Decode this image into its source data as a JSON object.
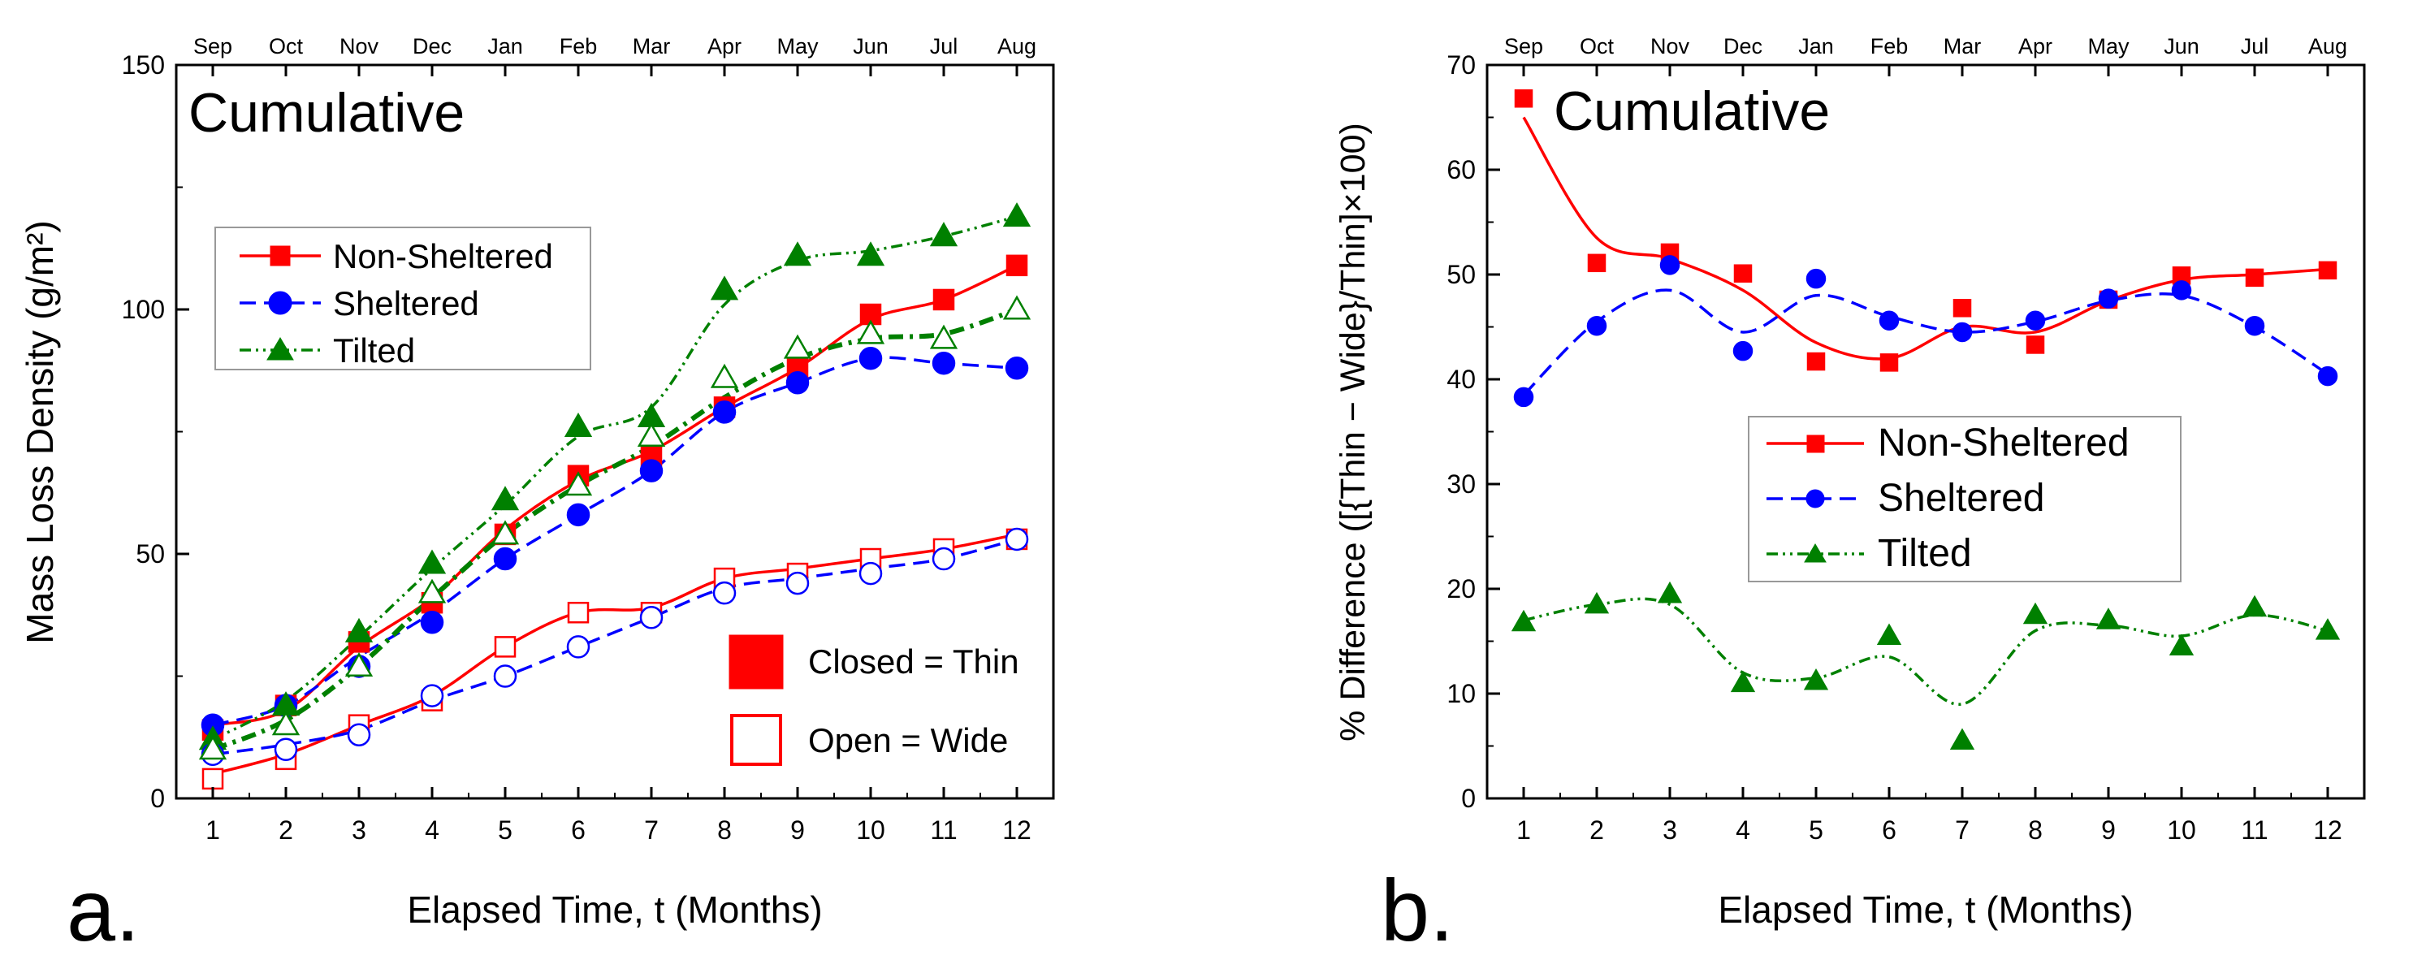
{
  "figure": {
    "panels": [
      "a.",
      "b."
    ]
  },
  "chart_data": [
    {
      "type": "line",
      "panel": "a.",
      "annotation": "Cumulative",
      "xlabel": "Elapsed Time, t (Months)",
      "ylabel": "Mass Loss Density (g/m²)",
      "x": [
        1,
        2,
        3,
        4,
        5,
        6,
        7,
        8,
        9,
        10,
        11,
        12
      ],
      "x_ticks": [
        "1",
        "2",
        "3",
        "4",
        "5",
        "6",
        "7",
        "8",
        "9",
        "10",
        "11",
        "12"
      ],
      "top_ticks": [
        "Sep",
        "Oct",
        "Nov",
        "Dec",
        "Jan",
        "Feb",
        "Mar",
        "Apr",
        "May",
        "Jun",
        "Jul",
        "Aug"
      ],
      "xlim": [
        0.5,
        12.5
      ],
      "ylim": [
        0,
        150
      ],
      "y_ticks": [
        "0",
        "50",
        "100",
        "150"
      ],
      "legend": [
        {
          "label": "Non-Sheltered",
          "color": "#ff0000",
          "marker": "square",
          "dash": "solid"
        },
        {
          "label": "Sheltered",
          "color": "#0000ff",
          "marker": "circle",
          "dash": "dash"
        },
        {
          "label": "Tilted",
          "color": "#008000",
          "marker": "triangle",
          "dash": "dashdotdot"
        }
      ],
      "fill_legend": [
        {
          "label": "Closed = Thin",
          "color": "#ff0000",
          "filled": true
        },
        {
          "label": "Open = Wide",
          "color": "#ff0000",
          "filled": false
        }
      ],
      "series": [
        {
          "name": "Non-Sheltered Thin",
          "color": "#ff0000",
          "marker": "square",
          "filled": true,
          "dash": "solid",
          "curve": [
            15,
            18,
            31,
            41,
            55,
            65,
            71,
            80,
            88,
            98,
            102,
            109
          ],
          "points": [
            14,
            19,
            32,
            40,
            54,
            66,
            70,
            80,
            88,
            99,
            102,
            109
          ]
        },
        {
          "name": "Sheltered Thin",
          "color": "#0000ff",
          "marker": "circle",
          "filled": true,
          "dash": "dash",
          "curve": [
            15,
            19,
            29,
            38,
            49,
            58,
            67,
            79,
            85,
            90,
            89,
            88
          ],
          "points": [
            15,
            19,
            27,
            36,
            49,
            58,
            67,
            79,
            85,
            90,
            89,
            88
          ]
        },
        {
          "name": "Tilted Thin",
          "color": "#008000",
          "marker": "triangle",
          "filled": true,
          "dash": "dashdotdot",
          "curve": [
            12,
            20,
            33,
            47,
            60,
            74,
            80,
            101,
            110,
            112,
            115,
            119
          ],
          "points": [
            12,
            19,
            34,
            48,
            61,
            76,
            78,
            104,
            111,
            111,
            115,
            119
          ]
        },
        {
          "name": "Non-Sheltered Wide",
          "color": "#ff0000",
          "marker": "square",
          "filled": false,
          "dash": "solid",
          "curve": [
            5,
            9,
            15,
            21,
            31,
            38,
            39,
            45,
            47,
            49,
            51,
            54
          ],
          "points": [
            4,
            8,
            15,
            20,
            31,
            38,
            38,
            45,
            46,
            49,
            51,
            53
          ]
        },
        {
          "name": "Sheltered Wide",
          "color": "#0000ff",
          "marker": "circle",
          "filled": false,
          "dash": "dash",
          "curve": [
            9,
            11,
            14,
            20,
            25,
            31,
            37,
            43,
            45,
            47,
            49,
            53
          ],
          "points": [
            9,
            10,
            13,
            21,
            25,
            31,
            37,
            42,
            44,
            46,
            49,
            53
          ]
        },
        {
          "name": "Tilted Wide",
          "color": "#008000",
          "marker": "triangle",
          "filled": false,
          "dash": "dashdot",
          "curve": [
            10,
            16,
            27,
            41,
            54,
            64,
            72,
            82,
            90,
            94,
            95,
            100
          ],
          "points": [
            10,
            15,
            27,
            42,
            54,
            64,
            74,
            86,
            92,
            95,
            94,
            100
          ]
        }
      ]
    },
    {
      "type": "line",
      "panel": "b.",
      "annotation": "Cumulative",
      "xlabel": "Elapsed Time, t (Months)",
      "ylabel": "% Difference ([{Thin − Wide}/Thin]×100)",
      "x": [
        1,
        2,
        3,
        4,
        5,
        6,
        7,
        8,
        9,
        10,
        11,
        12
      ],
      "x_ticks": [
        "1",
        "2",
        "3",
        "4",
        "5",
        "6",
        "7",
        "8",
        "9",
        "10",
        "11",
        "12"
      ],
      "top_ticks": [
        "Sep",
        "Oct",
        "Nov",
        "Dec",
        "Jan",
        "Feb",
        "Mar",
        "Apr",
        "May",
        "Jun",
        "Jul",
        "Aug"
      ],
      "xlim": [
        0.5,
        12.5
      ],
      "ylim": [
        0,
        70
      ],
      "y_ticks": [
        "0",
        "10",
        "20",
        "30",
        "40",
        "50",
        "60",
        "70"
      ],
      "legend": [
        {
          "label": "Non-Sheltered",
          "color": "#ff0000",
          "marker": "square",
          "dash": "solid"
        },
        {
          "label": "Sheltered",
          "color": "#0000ff",
          "marker": "circle",
          "dash": "dash"
        },
        {
          "label": "Tilted",
          "color": "#008000",
          "marker": "triangle",
          "dash": "dashdotdot"
        }
      ],
      "series": [
        {
          "name": "Non-Sheltered",
          "color": "#ff0000",
          "marker": "square",
          "filled": true,
          "dash": "solid",
          "curve": [
            65,
            53.5,
            51.5,
            48.5,
            43.5,
            42,
            45,
            44.5,
            47.5,
            49.5,
            50,
            50.5
          ],
          "points": [
            66.8,
            51.1,
            52.1,
            50.1,
            41.7,
            41.6,
            46.8,
            43.3,
            47.6,
            49.9,
            49.7,
            50.4
          ]
        },
        {
          "name": "Sheltered",
          "color": "#0000ff",
          "marker": "circle",
          "filled": true,
          "dash": "dash",
          "curve": [
            38.5,
            45.5,
            48.5,
            44.5,
            48,
            46,
            44.5,
            45.5,
            47.5,
            48,
            45,
            40.5
          ],
          "points": [
            38.3,
            45.1,
            50.9,
            42.7,
            49.6,
            45.6,
            44.5,
            45.6,
            47.7,
            48.5,
            45.1,
            40.3
          ]
        },
        {
          "name": "Tilted",
          "color": "#008000",
          "marker": "triangle",
          "filled": true,
          "dash": "dashdotdot",
          "curve": [
            17,
            18.5,
            18.5,
            12,
            11.5,
            13.5,
            9,
            16,
            16.5,
            15.5,
            17.5,
            16
          ],
          "points": [
            16.8,
            18.5,
            19.5,
            11.0,
            11.2,
            15.5,
            5.5,
            17.5,
            17.0,
            14.5,
            18.2,
            16.0
          ]
        }
      ]
    }
  ]
}
